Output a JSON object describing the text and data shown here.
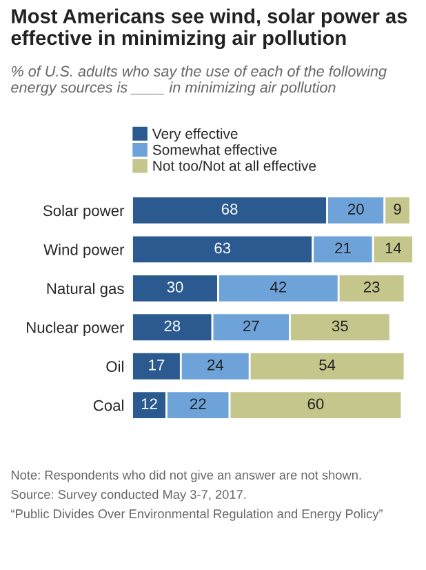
{
  "chart_data": {
    "type": "bar",
    "orientation": "horizontal",
    "stacked": true,
    "title": "Most Americans see wind, solar power as effective in minimizing air pollution",
    "subtitle": "% of U.S. adults who say the use of each of the following energy sources is ____ in minimizing air pollution",
    "categories": [
      "Solar power",
      "Wind power",
      "Natural gas",
      "Nuclear power",
      "Oil",
      "Coal"
    ],
    "series": [
      {
        "name": "Very effective",
        "color": "#2a5a8f",
        "values": [
          68,
          63,
          30,
          28,
          17,
          12
        ]
      },
      {
        "name": "Somewhat effective",
        "color": "#6da3d9",
        "values": [
          20,
          21,
          42,
          27,
          24,
          22
        ]
      },
      {
        "name": "Not too/Not at all effective",
        "color": "#c5c68c",
        "values": [
          9,
          14,
          23,
          35,
          54,
          60
        ]
      }
    ],
    "data_labels": true,
    "legend": "top left",
    "tick_labels": "y",
    "grid": false,
    "annotations": [
      "Note: Respondents who did not give an answer are not shown.",
      "Source: Survey conducted May 3-7, 2017.",
      "“Public Divides Over Environmental Regulation and Energy Policy”"
    ]
  }
}
